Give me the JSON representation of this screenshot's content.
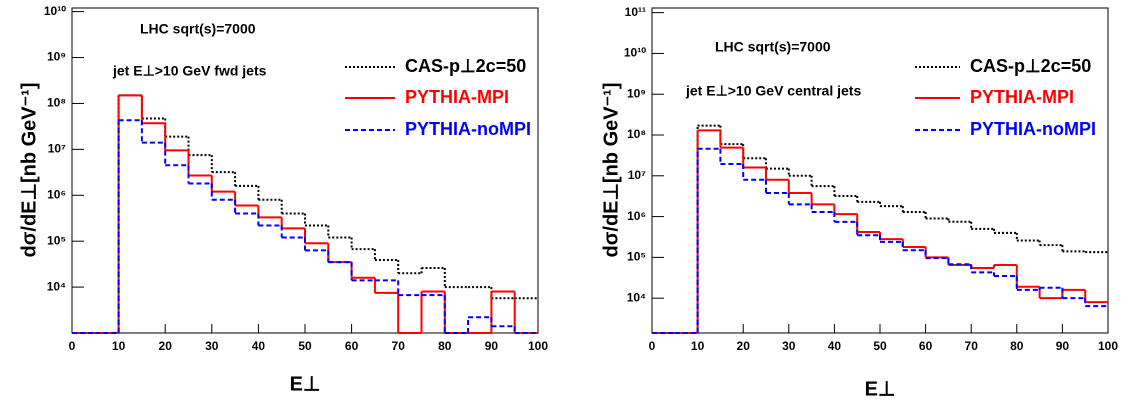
{
  "chart_data": [
    {
      "type": "histogram",
      "annotations": [
        "LHC sqrt(s)=7000",
        "jet E⊥>10 GeV fwd jets"
      ],
      "xlabel": "E⊥",
      "ylabel": "dσ/dE⊥[nb GeV⁻¹]",
      "bins": [
        0,
        5,
        10,
        15,
        20,
        25,
        30,
        35,
        40,
        45,
        50,
        55,
        60,
        65,
        70,
        75,
        80,
        85,
        90,
        95,
        100
      ],
      "xlim": [
        0,
        100
      ],
      "xticks": [
        0,
        10,
        20,
        30,
        40,
        50,
        60,
        70,
        80,
        90,
        100
      ],
      "log_y": true,
      "ylim": [
        1000,
        12000000000
      ],
      "yticks": [
        {
          "value": 10000,
          "label": "10⁴"
        },
        {
          "value": 100000,
          "label": "10⁵"
        },
        {
          "value": 1000000,
          "label": "10⁶"
        },
        {
          "value": 10000000,
          "label": "10⁷"
        },
        {
          "value": 100000000,
          "label": "10⁸"
        },
        {
          "value": 1000000000,
          "label": "10⁹"
        },
        {
          "value": 10000000000,
          "label": "10¹⁰"
        }
      ],
      "series": [
        {
          "name": "CAS-p⊥2c=50",
          "color": "#000000",
          "dash": "dotted",
          "values": [
            0,
            0,
            150000000,
            47000000,
            19000000,
            7500000,
            3200000,
            1600000,
            800000,
            400000,
            220000,
            120000,
            67000,
            39000,
            20000,
            26000,
            10000,
            10000,
            5700,
            5700
          ]
        },
        {
          "name": "PYTHIA-MPI",
          "color": "#ff0000",
          "dash": "solid",
          "values": [
            0,
            0,
            150000000,
            37000000,
            9500000,
            2700000,
            1200000,
            600000,
            330000,
            190000,
            90000,
            35000,
            16000,
            7500,
            0,
            8000,
            0,
            0,
            8000,
            0
          ]
        },
        {
          "name": "PYTHIA-noMPI",
          "color": "#0000ff",
          "dash": "dashed",
          "values": [
            0,
            0,
            43000000,
            14000000,
            4500000,
            1800000,
            800000,
            400000,
            220000,
            120000,
            63000,
            35000,
            14000,
            14000,
            6700,
            6700,
            0,
            2200,
            1400,
            0
          ]
        }
      ]
    },
    {
      "type": "histogram",
      "annotations": [
        "LHC sqrt(s)=7000",
        "jet E⊥>10 GeV central jets"
      ],
      "xlabel": "E⊥",
      "ylabel": "dσ/dE⊥[nb GeV⁻¹]",
      "bins": [
        0,
        5,
        10,
        15,
        20,
        25,
        30,
        35,
        40,
        45,
        50,
        55,
        60,
        65,
        70,
        75,
        80,
        85,
        90,
        95,
        100
      ],
      "xlim": [
        0,
        100
      ],
      "xticks": [
        0,
        10,
        20,
        30,
        40,
        50,
        60,
        70,
        80,
        90,
        100
      ],
      "log_y": true,
      "ylim": [
        1400,
        130000000000
      ],
      "yticks": [
        {
          "value": 10000,
          "label": "10⁴"
        },
        {
          "value": 100000,
          "label": "10⁵"
        },
        {
          "value": 1000000,
          "label": "10⁶"
        },
        {
          "value": 10000000,
          "label": "10⁷"
        },
        {
          "value": 100000000,
          "label": "10⁸"
        },
        {
          "value": 1000000000,
          "label": "10⁹"
        },
        {
          "value": 10000000000,
          "label": "10¹⁰"
        },
        {
          "value": 100000000000,
          "label": "10¹¹"
        }
      ],
      "series": [
        {
          "name": "CAS-p⊥2c=50",
          "color": "#000000",
          "dash": "dotted",
          "values": [
            0,
            0,
            170000000,
            60000000,
            27000000,
            15000000,
            10000000,
            5600000,
            3200000,
            2300000,
            1800000,
            1300000,
            900000,
            750000,
            500000,
            400000,
            260000,
            200000,
            140000,
            135000
          ]
        },
        {
          "name": "PYTHIA-MPI",
          "color": "#ff0000",
          "dash": "solid",
          "values": [
            0,
            0,
            130000000,
            49000000,
            16000000,
            8000000,
            3800000,
            2000000,
            1150000,
            420000,
            280000,
            180000,
            100000,
            65000,
            55000,
            65000,
            19000,
            10000,
            16000,
            8000
          ]
        },
        {
          "name": "PYTHIA-noMPI",
          "color": "#0000ff",
          "dash": "dashed",
          "values": [
            0,
            0,
            46000000,
            19500000,
            8000000,
            3800000,
            2000000,
            1300000,
            740000,
            350000,
            240000,
            150000,
            96000,
            68000,
            43000,
            35000,
            16000,
            18000,
            10000,
            6400
          ]
        }
      ]
    }
  ]
}
